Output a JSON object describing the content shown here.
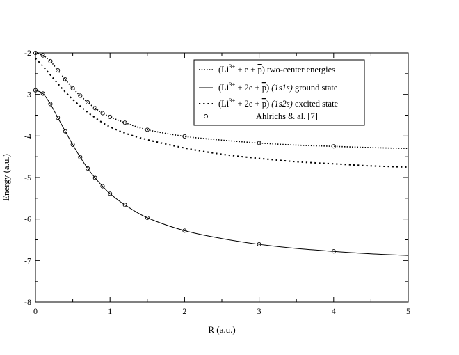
{
  "chart_data": {
    "type": "line",
    "xlabel": "R (a.u.)",
    "ylabel": "Energy (a.u.)",
    "xlim": [
      0,
      5
    ],
    "ylim": [
      -8,
      -2
    ],
    "x_ticks": [
      0,
      1,
      2,
      3,
      4,
      5
    ],
    "y_ticks": [
      -2,
      -3,
      -4,
      -5,
      -6,
      -7,
      -8
    ],
    "x_tick_labels": [
      "0",
      "1",
      "2",
      "3",
      "4",
      "5"
    ],
    "y_tick_labels": [
      "-2",
      "-3",
      "-4",
      "-5",
      "-6",
      "-7",
      "-8"
    ],
    "grid": false,
    "legend_position": "top-right",
    "series": [
      {
        "style": "dotted",
        "legend": {
          "ion": "Li",
          "charge": "3+",
          "rest": " + e + ",
          "antiparticle": "p",
          "state": "",
          "description": " two-center energies"
        },
        "x": [
          0,
          0.1,
          0.2,
          0.3,
          0.4,
          0.5,
          0.6,
          0.7,
          0.8,
          0.9,
          1.0,
          1.2,
          1.5,
          2.0,
          2.5,
          3.0,
          3.5,
          4.0,
          4.5,
          5.0
        ],
        "y": [
          -2.0,
          -2.06,
          -2.2,
          -2.42,
          -2.64,
          -2.85,
          -3.03,
          -3.19,
          -3.33,
          -3.45,
          -3.54,
          -3.68,
          -3.85,
          -4.01,
          -4.1,
          -4.17,
          -4.22,
          -4.25,
          -4.28,
          -4.3
        ]
      },
      {
        "style": "solid",
        "legend": {
          "ion": "Li",
          "charge": "3+",
          "rest": " + 2e + ",
          "antiparticle": "p",
          "state": "(1s1s)",
          "description": " ground state"
        },
        "x": [
          0,
          0.1,
          0.2,
          0.3,
          0.4,
          0.5,
          0.6,
          0.7,
          0.8,
          0.9,
          1.0,
          1.2,
          1.5,
          2.0,
          2.5,
          3.0,
          3.5,
          4.0,
          4.5,
          5.0
        ],
        "y": [
          -2.9,
          -2.98,
          -3.23,
          -3.56,
          -3.89,
          -4.21,
          -4.51,
          -4.78,
          -5.01,
          -5.21,
          -5.39,
          -5.66,
          -5.97,
          -6.28,
          -6.47,
          -6.61,
          -6.71,
          -6.78,
          -6.84,
          -6.88
        ]
      },
      {
        "style": "dashed-dots",
        "legend": {
          "ion": "Li",
          "charge": "3+",
          "rest": " + 2e + ",
          "antiparticle": "p",
          "state": "(1s2s)",
          "description": " excited state"
        },
        "x": [
          0,
          0.1,
          0.2,
          0.3,
          0.4,
          0.5,
          0.6,
          0.7,
          0.8,
          0.9,
          1.0,
          1.2,
          1.5,
          2.0,
          2.5,
          3.0,
          3.5,
          4.0,
          4.5,
          5.0
        ],
        "y": [
          -2.13,
          -2.32,
          -2.53,
          -2.74,
          -2.94,
          -3.12,
          -3.28,
          -3.43,
          -3.56,
          -3.68,
          -3.78,
          -3.93,
          -4.09,
          -4.29,
          -4.44,
          -4.54,
          -4.62,
          -4.67,
          -4.72,
          -4.75
        ]
      },
      {
        "style": "markers",
        "legend": {
          "text": "Ahlrichs & al. [7]"
        },
        "points": [
          {
            "x": 0,
            "y": -2.0
          },
          {
            "x": 0.1,
            "y": -2.06
          },
          {
            "x": 0.2,
            "y": -2.2
          },
          {
            "x": 0.3,
            "y": -2.42
          },
          {
            "x": 0.4,
            "y": -2.64
          },
          {
            "x": 0.5,
            "y": -2.85
          },
          {
            "x": 0.6,
            "y": -3.03
          },
          {
            "x": 0.7,
            "y": -3.19
          },
          {
            "x": 0.8,
            "y": -3.33
          },
          {
            "x": 0.9,
            "y": -3.45
          },
          {
            "x": 1.0,
            "y": -3.54
          },
          {
            "x": 1.2,
            "y": -3.68
          },
          {
            "x": 1.5,
            "y": -3.85
          },
          {
            "x": 2.0,
            "y": -4.01
          },
          {
            "x": 3.0,
            "y": -4.17
          },
          {
            "x": 4.0,
            "y": -4.25
          },
          {
            "x": 0,
            "y": -2.9
          },
          {
            "x": 0.1,
            "y": -2.98
          },
          {
            "x": 0.2,
            "y": -3.23
          },
          {
            "x": 0.3,
            "y": -3.56
          },
          {
            "x": 0.4,
            "y": -3.89
          },
          {
            "x": 0.5,
            "y": -4.21
          },
          {
            "x": 0.6,
            "y": -4.51
          },
          {
            "x": 0.7,
            "y": -4.78
          },
          {
            "x": 0.8,
            "y": -5.01
          },
          {
            "x": 0.9,
            "y": -5.21
          },
          {
            "x": 1.0,
            "y": -5.39
          },
          {
            "x": 1.2,
            "y": -5.66
          },
          {
            "x": 1.5,
            "y": -5.97
          },
          {
            "x": 2.0,
            "y": -6.28
          },
          {
            "x": 3.0,
            "y": -6.61
          },
          {
            "x": 4.0,
            "y": -6.78
          }
        ]
      }
    ]
  }
}
